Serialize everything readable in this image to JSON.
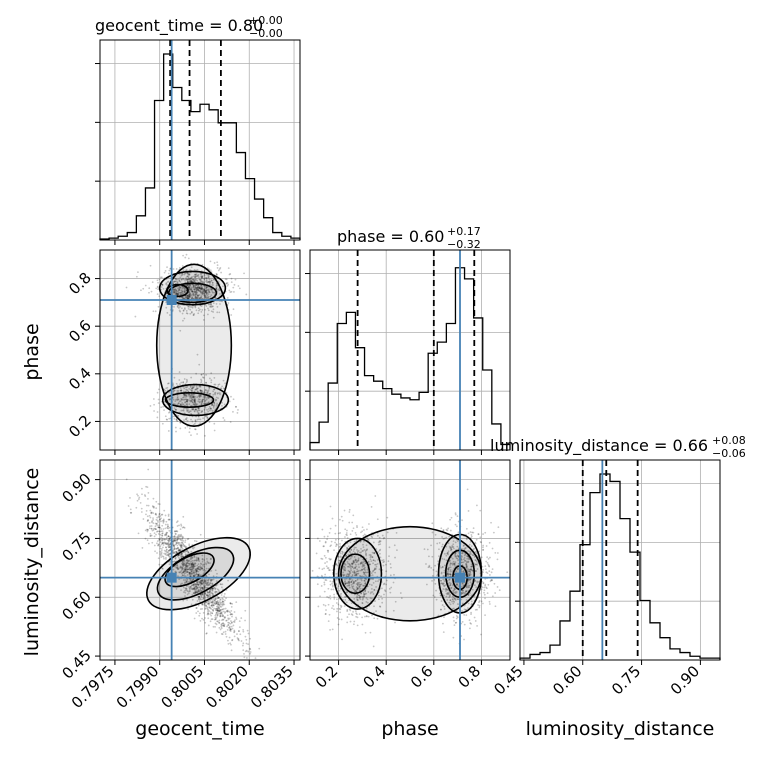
{
  "chart_data": {
    "type": "corner",
    "parameters": [
      "geocent_time",
      "phase",
      "luminosity_distance"
    ],
    "truth": {
      "geocent_time": 0.7994,
      "phase": 0.71,
      "luminosity_distance": 0.65
    },
    "quantile_lines": {
      "geocent_time": [
        0.79935,
        0.8,
        0.80105
      ],
      "phase": [
        0.28,
        0.6,
        0.77
      ],
      "luminosity_distance": [
        0.6,
        0.66,
        0.74
      ]
    },
    "ranges": {
      "geocent_time": [
        0.797,
        0.8037
      ],
      "phase": [
        0.08,
        0.92
      ],
      "luminosity_distance": [
        0.44,
        0.95
      ]
    },
    "titles": {
      "geocent_time": {
        "main": "geocent_time = 0.80",
        "sup": "+0.00",
        "sub": "−0.00"
      },
      "phase": {
        "main": "phase = 0.60",
        "sup": "+0.17",
        "sub": "−0.32"
      },
      "luminosity_distance": {
        "main": "luminosity_distance = 0.66",
        "sup": "+0.08",
        "sub": "−0.06"
      }
    },
    "xlabels": [
      "geocent_time",
      "phase",
      "luminosity_distance"
    ],
    "ylabels": {
      "row1": "phase",
      "row2": "luminosity_distance"
    },
    "ticks": {
      "geocent_time": [
        "0.7975",
        "0.7990",
        "0.8005",
        "0.8020",
        "0.8035"
      ],
      "phase": [
        "0.2",
        "0.4",
        "0.6",
        "0.8"
      ],
      "luminosity_distance": [
        "0.45",
        "0.60",
        "0.75",
        "0.90"
      ]
    },
    "hist_geocent_time": [
      0.005,
      0.01,
      0.02,
      0.04,
      0.13,
      0.28,
      0.75,
      1.0,
      0.82,
      0.75,
      0.69,
      0.73,
      0.7,
      0.63,
      0.63,
      0.47,
      0.33,
      0.22,
      0.12,
      0.04,
      0.02,
      0.01
    ],
    "hist_phase": [
      0.04,
      0.15,
      0.36,
      0.68,
      0.74,
      0.55,
      0.4,
      0.37,
      0.33,
      0.3,
      0.28,
      0.27,
      0.31,
      0.52,
      0.58,
      0.68,
      0.98,
      0.92,
      0.71,
      0.43,
      0.14,
      0.03
    ],
    "hist_luminosity_distance": [
      0.01,
      0.03,
      0.04,
      0.08,
      0.21,
      0.37,
      0.62,
      0.9,
      1.0,
      0.96,
      0.76,
      0.58,
      0.32,
      0.2,
      0.12,
      0.06,
      0.04,
      0.02,
      0.01,
      0.01
    ],
    "grid": true,
    "colors": {
      "truth": "#4682b4",
      "hist": "#000000",
      "quantile": "#000000",
      "density": "#000000"
    }
  }
}
